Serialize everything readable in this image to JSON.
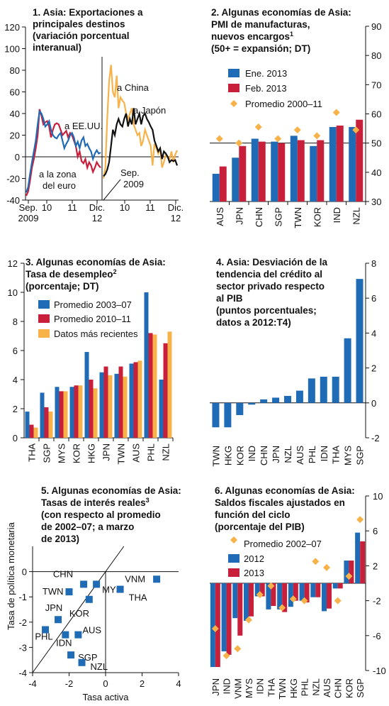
{
  "colors": {
    "blue": "#1f6bb5",
    "red": "#c8203a",
    "gold": "#f7b24a",
    "diamond": "#f7b24a",
    "black": "#111111",
    "grid": "#111111"
  },
  "chart_data": [
    {
      "id": "p1",
      "type": "line",
      "title": [
        "1. Asia: Exportaciones a",
        "principales destinos",
        "(variación porcentual",
        "interanual)"
      ],
      "ylim": [
        -40,
        120
      ],
      "yticks": [
        -40,
        -20,
        0,
        20,
        40,
        60,
        80,
        100,
        120
      ],
      "xtick_labels": [
        {
          "top": "Sep.",
          "bottom": "2009"
        },
        {
          "top": "10",
          "bottom": ""
        },
        {
          "top": "11",
          "bottom": ""
        },
        {
          "top": "Dic.",
          "bottom": "12"
        },
        {
          "top": "10",
          "bottom": ""
        },
        {
          "top": "11",
          "bottom": ""
        },
        {
          "top": "Dic.",
          "bottom": "12"
        }
      ],
      "left_panel": {
        "x_start": "2009-09",
        "x_end": "2012-12",
        "series": [
          {
            "name": "a EE.UU.",
            "values": [
              -33,
              -28,
              -16,
              -5,
              5,
              15,
              30,
              42,
              40,
              35,
              28,
              30,
              33,
              25,
              20,
              18,
              17,
              20,
              22,
              15,
              8,
              12,
              15,
              20,
              22,
              18,
              10,
              14,
              8,
              15,
              18,
              10,
              12,
              8,
              5,
              -2,
              3,
              6,
              3,
              4
            ]
          },
          {
            "name": "a la zona del euro",
            "values": [
              -36,
              -32,
              -22,
              -10,
              -2,
              8,
              20,
              44,
              38,
              30,
              32,
              33,
              28,
              18,
              25,
              30,
              31,
              30,
              25,
              20,
              22,
              24,
              18,
              22,
              20,
              15,
              10,
              0,
              5,
              -4,
              -6,
              -2,
              -10,
              -5,
              -8,
              -14,
              -10,
              -5,
              -8,
              -10
            ]
          }
        ],
        "labels": [
          "a EE.UU.",
          "a la zona",
          "del euro"
        ]
      },
      "right_panel": {
        "x_start": "2009-09",
        "x_end": "2012-12",
        "series": [
          {
            "name": "a China",
            "values": [
              -20,
              -10,
              35,
              70,
              85,
              60,
              55,
              75,
              45,
              55,
              52,
              50,
              40,
              35,
              40,
              45,
              30,
              25,
              20,
              22,
              10,
              15,
              25,
              20,
              15,
              10,
              -8,
              12,
              8,
              3,
              8,
              -10,
              -5,
              2,
              0,
              -2,
              5,
              -5,
              2,
              6
            ]
          },
          {
            "name": "a Japón",
            "values": [
              -18,
              -16,
              -12,
              -5,
              10,
              25,
              20,
              30,
              35,
              30,
              28,
              35,
              40,
              28,
              35,
              30,
              45,
              30,
              35,
              40,
              30,
              38,
              40,
              35,
              32,
              28,
              25,
              15,
              10,
              5,
              8,
              -2,
              5,
              3,
              0,
              -5,
              -3,
              -4,
              -3,
              -8
            ]
          }
        ],
        "labels": [
          "a China",
          "a Japón"
        ]
      },
      "annotation": [
        "Sep.",
        "2009"
      ]
    },
    {
      "id": "p2",
      "type": "bar",
      "title": [
        "2. Algunas economías de Asia:",
        "PMI de manufacturas,",
        "nuevos encargos",
        "(50+ = expansión; DT)"
      ],
      "title_sup": "1",
      "categories": [
        "AUS",
        "JPN",
        "CHN",
        "SGP",
        "TWN",
        "KOR",
        "IND",
        "NZL"
      ],
      "series": [
        {
          "name": "Ene. 2013",
          "values": [
            39.5,
            45,
            51.5,
            50.5,
            52.5,
            49,
            55.5,
            55.5
          ]
        },
        {
          "name": "Feb. 2013",
          "values": [
            42,
            49,
            50.5,
            50,
            51,
            51,
            56,
            58
          ]
        },
        {
          "name": "Promedio 2000–11",
          "values": [
            51.5,
            50,
            55.5,
            51.5,
            54.5,
            52.5,
            60.5,
            54.5
          ]
        }
      ],
      "ylim": [
        30,
        90
      ],
      "yticks": [
        30,
        40,
        50,
        60,
        70,
        80,
        90
      ],
      "axis": "right",
      "refline": 50
    },
    {
      "id": "p3",
      "type": "bar",
      "title": [
        "3. Algunas economías de Asia:",
        "Tasa de desempleo",
        "(porcentaje; DT)"
      ],
      "title_sup": "2",
      "categories": [
        "THA",
        "SGP",
        "MYS",
        "KOR",
        "HKG",
        "JPN",
        "TWN",
        "AUS",
        "PHL",
        "NZL"
      ],
      "series": [
        {
          "name": "Promedio 2003–07",
          "values": [
            1.8,
            3.1,
            3.5,
            3.5,
            5.9,
            4.5,
            4.4,
            5.1,
            10.0,
            4.0
          ]
        },
        {
          "name": "Promedio 2010–11",
          "values": [
            0.9,
            2.1,
            3.2,
            3.6,
            4.0,
            4.9,
            4.9,
            5.2,
            7.2,
            6.5
          ]
        },
        {
          "name": "Datos más recientes",
          "values": [
            0.7,
            1.8,
            3.2,
            3.6,
            3.4,
            4.3,
            4.2,
            5.3,
            7.1,
            7.3
          ]
        }
      ],
      "ylim": [
        0,
        12
      ],
      "yticks": [
        0,
        2,
        4,
        6,
        8,
        10,
        12
      ],
      "axis": "left"
    },
    {
      "id": "p4",
      "type": "bar",
      "title": [
        "4. Asia: Desviación de la",
        "tendencia del crédito al",
        "sector privado respecto",
        "al PIB",
        "(puntos porcentuales;",
        "datos a 2012:T4)"
      ],
      "categories": [
        "TWN",
        "HKG",
        "KOR",
        "IND",
        "CHN",
        "JPN",
        "NZL",
        "AUS",
        "PHL",
        "IDN",
        "THA",
        "MYS",
        "SGP"
      ],
      "values": [
        -1.4,
        -1.4,
        -0.7,
        -0.1,
        0.2,
        0.3,
        0.4,
        0.7,
        1.4,
        1.5,
        1.5,
        3.7,
        7.1
      ],
      "ylim": [
        -2,
        8
      ],
      "yticks": [
        -2,
        0,
        2,
        4,
        6,
        8
      ],
      "axis": "right"
    },
    {
      "id": "p5",
      "type": "scatter",
      "title": [
        "5. Algunas economías de Asia:",
        "Tasas de interés reales",
        "(con respecto al promedio",
        "de 2002–07; a marzo",
        "de 2013)"
      ],
      "title_sup": "3",
      "xlabel": "Tasa activa",
      "ylabel": "Tasa de política monetaria",
      "xlim": [
        -4,
        4
      ],
      "ylim": [
        -4,
        1
      ],
      "xticks": [
        -4,
        -2,
        0,
        2,
        4
      ],
      "yticks": [
        -4,
        -3,
        -2,
        -1,
        0
      ],
      "points": [
        {
          "label": "CHN",
          "x": -1.2,
          "y": -0.5
        },
        {
          "label": "TWN",
          "x": -2.0,
          "y": -0.8
        },
        {
          "label": "MYS",
          "x": -0.5,
          "y": -0.5
        },
        {
          "label": "KOR",
          "x": -0.9,
          "y": -1.1
        },
        {
          "label": "VNM",
          "x": 2.8,
          "y": -0.3
        },
        {
          "label": "THA",
          "x": 0.8,
          "y": -0.7
        },
        {
          "label": "JPN",
          "x": -2.6,
          "y": -1.9
        },
        {
          "label": "PHL",
          "x": -3.3,
          "y": -2.3
        },
        {
          "label": "AUS",
          "x": -1.5,
          "y": -2.5
        },
        {
          "label": "IDN",
          "x": -2.2,
          "y": -2.5
        },
        {
          "label": "SGP",
          "x": -1.9,
          "y": -3.3
        },
        {
          "label": "NZL",
          "x": -1.3,
          "y": -3.6
        }
      ]
    },
    {
      "id": "p6",
      "type": "bar",
      "title": [
        "6. Algunas economías de Asia:",
        "Saldos fiscales ajustados en",
        "función del ciclo",
        "(porcentaje del PIB)"
      ],
      "categories": [
        "JPN",
        "IND",
        "VNM",
        "MYS",
        "IDN",
        "THA",
        "TWN",
        "HKG",
        "PHL",
        "NZL",
        "AUS",
        "CHN",
        "KOR",
        "SGP"
      ],
      "series": [
        {
          "name": "Promedio 2002–07",
          "values": [
            -5.2,
            -8.3,
            -7.5,
            -4.2,
            -1.3,
            -0.3,
            -2.8,
            -1.8,
            -2.0,
            2.5,
            1.8,
            -2.0,
            0.8,
            7.3
          ]
        },
        {
          "name": "2012",
          "values": [
            -9.6,
            -7.8,
            -4.0,
            -4.3,
            -1.5,
            -3.0,
            -3.0,
            -2.7,
            -2.0,
            -1.6,
            -3.2,
            -0.6,
            2.6,
            5.8
          ]
        },
        {
          "name": "2013",
          "values": [
            -9.6,
            -8.2,
            -6.0,
            -3.8,
            -1.5,
            -2.6,
            -3.3,
            -2.0,
            -2.2,
            -1.6,
            -2.9,
            -0.6,
            2.6,
            4.8
          ]
        }
      ],
      "ylim": [
        -10,
        10
      ],
      "yticks": [
        -10,
        -6,
        -2,
        2,
        6,
        10
      ],
      "axis": "right"
    }
  ]
}
